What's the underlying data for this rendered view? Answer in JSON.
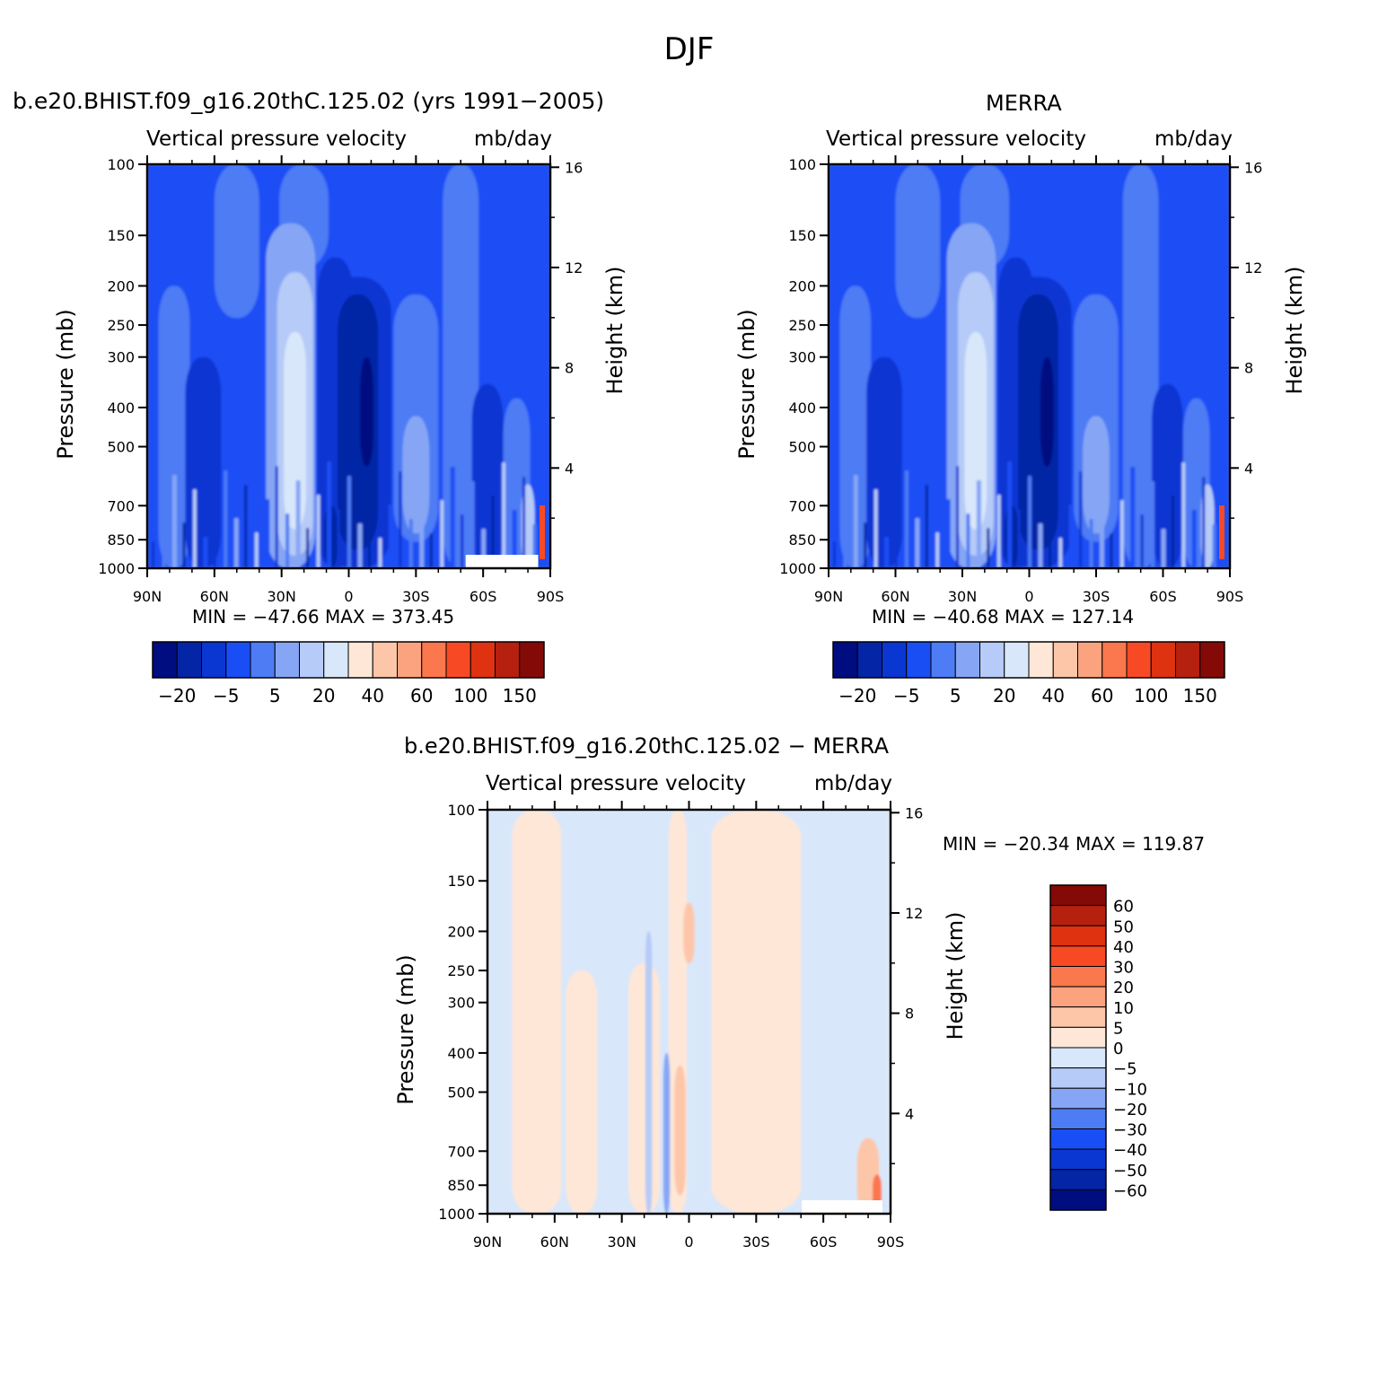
{
  "page": {
    "title": "DJF",
    "colors": {
      "frame": "#000000",
      "background": "#ffffff"
    }
  },
  "panels": [
    {
      "case_title": "b.e20.BHIST.f09_g16.20thC.125.02 (yrs 1991−2005)",
      "var_label": "Vertical pressure velocity",
      "units": "mb/day",
      "minmax": "MIN = −47.66   MAX = 373.45"
    },
    {
      "case_title": "MERRA",
      "var_label": "Vertical pressure velocity",
      "units": "mb/day",
      "minmax": "MIN = −40.68   MAX = 127.14"
    },
    {
      "case_title": "b.e20.BHIST.f09_g16.20thC.125.02 − MERRA",
      "var_label": "Vertical pressure velocity",
      "units": "mb/day",
      "minmax": "MIN = −20.34   MAX = 119.87"
    }
  ],
  "chart_data": [
    {
      "type": "heatmap",
      "title": "b.e20.BHIST.f09_g16.20thC.125.02 (yrs 1991−2005)",
      "ylabel": "Pressure (mb)",
      "y2label": "Height (km)",
      "x_ticks": [
        "90N",
        "60N",
        "30N",
        "0",
        "30S",
        "60S",
        "90S"
      ],
      "x_range": [
        90,
        -90
      ],
      "y_ticks": [
        "100",
        "150",
        "200",
        "250",
        "300",
        "400",
        "500",
        "700",
        "850",
        "1000"
      ],
      "y_range": [
        100,
        1000
      ],
      "y_scale": "log",
      "y2_ticks": [
        "4",
        "8",
        "12",
        "16"
      ],
      "colorbar_labels": [
        "−20",
        "−5",
        "5",
        "20",
        "40",
        "60",
        "100",
        "150"
      ],
      "colorbar_colors": [
        "#000d80",
        "#0325a6",
        "#0a36d2",
        "#1a4ef5",
        "#4d7cf5",
        "#86a6f5",
        "#b6cbf7",
        "#d9e7fa",
        "#fee7d7",
        "#fdc6a9",
        "#fba37f",
        "#fb774d",
        "#f74a24",
        "#de3210",
        "#b5200f",
        "#840a08"
      ],
      "min": -47.66,
      "max": 373.45,
      "features": [
        {
          "lat": -2,
          "p": 400,
          "level": 1
        },
        {
          "lat": 24,
          "p": 450,
          "level": 7
        },
        {
          "lat": -28,
          "p": 400,
          "level": 5
        },
        {
          "lat": -63,
          "p": 450,
          "level": 2
        }
      ]
    },
    {
      "type": "heatmap",
      "title": "MERRA",
      "ylabel": "Pressure (mb)",
      "y2label": "Height (km)",
      "x_ticks": [
        "90N",
        "60N",
        "30N",
        "0",
        "30S",
        "60S",
        "90S"
      ],
      "x_range": [
        90,
        -90
      ],
      "y_ticks": [
        "100",
        "150",
        "200",
        "250",
        "300",
        "400",
        "500",
        "700",
        "850",
        "1000"
      ],
      "y_range": [
        100,
        1000
      ],
      "y_scale": "log",
      "y2_ticks": [
        "4",
        "8",
        "12",
        "16"
      ],
      "colorbar_labels": [
        "−20",
        "−5",
        "5",
        "20",
        "40",
        "60",
        "100",
        "150"
      ],
      "colorbar_colors": [
        "#000d80",
        "#0325a6",
        "#0a36d2",
        "#1a4ef5",
        "#4d7cf5",
        "#86a6f5",
        "#b6cbf7",
        "#d9e7fa",
        "#fee7d7",
        "#fdc6a9",
        "#fba37f",
        "#fb774d",
        "#f74a24",
        "#de3210",
        "#b5200f",
        "#840a08"
      ],
      "min": -40.68,
      "max": 127.14,
      "features": [
        {
          "lat": -5,
          "p": 380,
          "level": 1
        },
        {
          "lat": 24,
          "p": 450,
          "level": 7
        },
        {
          "lat": -30,
          "p": 400,
          "level": 5
        },
        {
          "lat": -62,
          "p": 480,
          "level": 2
        }
      ]
    },
    {
      "type": "heatmap",
      "title": "b.e20.BHIST.f09_g16.20thC.125.02 − MERRA",
      "ylabel": "Pressure (mb)",
      "y2label": "Height (km)",
      "x_ticks": [
        "90N",
        "60N",
        "30N",
        "0",
        "30S",
        "60S",
        "90S"
      ],
      "x_range": [
        90,
        -90
      ],
      "y_ticks": [
        "100",
        "150",
        "200",
        "250",
        "300",
        "400",
        "500",
        "700",
        "850",
        "1000"
      ],
      "y_range": [
        100,
        1000
      ],
      "y_scale": "log",
      "y2_ticks": [
        "4",
        "8",
        "12",
        "16"
      ],
      "colorbar_labels": [
        "60",
        "50",
        "40",
        "30",
        "20",
        "10",
        "5",
        "0",
        "−5",
        "−10",
        "−20",
        "−30",
        "−40",
        "−50",
        "−60"
      ],
      "colorbar_colors": [
        "#840a08",
        "#b5200f",
        "#de3210",
        "#f74a24",
        "#fb774d",
        "#fba37f",
        "#fdc6a9",
        "#fee7d7",
        "#d9e7fa",
        "#b6cbf7",
        "#86a6f5",
        "#4d7cf5",
        "#1a4ef5",
        "#0a36d2",
        "#0325a6",
        "#000d80"
      ],
      "min": -20.34,
      "max": 119.87
    }
  ]
}
